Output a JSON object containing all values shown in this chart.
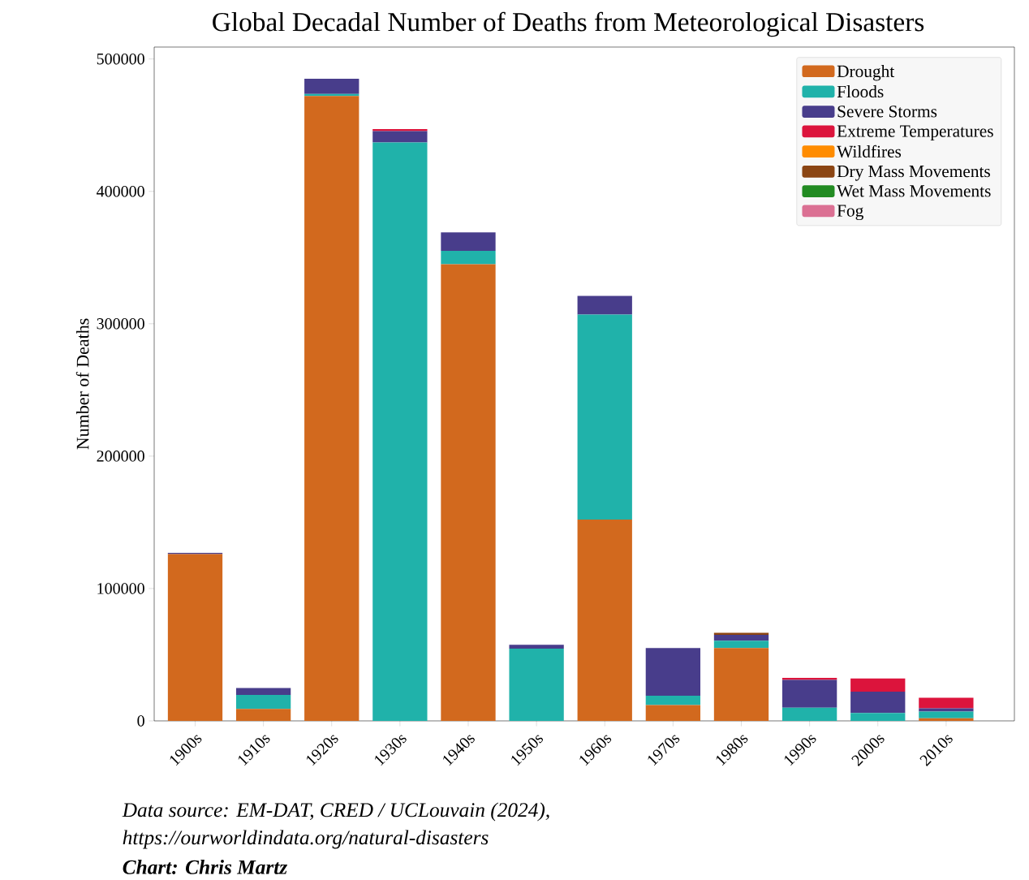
{
  "chart_data": {
    "type": "bar",
    "stacked": true,
    "title": "Global Decadal Number of Deaths from Meteorological Disasters",
    "ylabel": "Number of Deaths",
    "annotations": [
      "Data source: EM-DAT, CRED / UCLouvain (2024),",
      "https://ourworldindata.org/natural-disasters",
      "Chart: Chris Martz"
    ],
    "categories": [
      "1900s",
      "1910s",
      "1920s",
      "1930s",
      "1940s",
      "1950s",
      "1960s",
      "1970s",
      "1980s",
      "1990s",
      "2000s",
      "2010s"
    ],
    "series": [
      {
        "name": "Drought",
        "color": "#d2691e",
        "values": [
          126000,
          9000,
          472000,
          0,
          345000,
          0,
          152000,
          12000,
          55000,
          0,
          0,
          2000
        ]
      },
      {
        "name": "Floods",
        "color": "#20b2aa",
        "values": [
          0,
          10600,
          1500,
          437000,
          10000,
          54500,
          155000,
          7000,
          5500,
          10000,
          6000,
          5000
        ]
      },
      {
        "name": "Severe Storms",
        "color": "#483d8b",
        "values": [
          1000,
          5200,
          11500,
          8500,
          14000,
          3000,
          14000,
          36000,
          4500,
          21000,
          16000,
          2500
        ]
      },
      {
        "name": "Extreme Temperatures",
        "color": "#dc143c",
        "values": [
          0,
          0,
          0,
          1500,
          0,
          0,
          0,
          0,
          0,
          1500,
          10000,
          8000
        ]
      },
      {
        "name": "Wildfires",
        "color": "#ff8c00",
        "values": [
          0,
          0,
          0,
          0,
          0,
          0,
          0,
          0,
          0,
          0,
          0,
          0
        ]
      },
      {
        "name": "Dry Mass Movements",
        "color": "#8b4513",
        "values": [
          0,
          0,
          0,
          0,
          0,
          0,
          0,
          0,
          1500,
          0,
          0,
          0
        ]
      },
      {
        "name": "Wet Mass Movements",
        "color": "#228b22",
        "values": [
          0,
          0,
          0,
          0,
          0,
          0,
          0,
          0,
          0,
          0,
          0,
          0
        ]
      },
      {
        "name": "Fog",
        "color": "#db7093",
        "values": [
          0,
          0,
          0,
          0,
          0,
          0,
          0,
          0,
          0,
          0,
          0,
          0
        ]
      }
    ],
    "ylim": [
      0,
      509000
    ],
    "yticks": [
      0,
      100000,
      200000,
      300000,
      400000,
      500000
    ],
    "legend": "top right"
  }
}
